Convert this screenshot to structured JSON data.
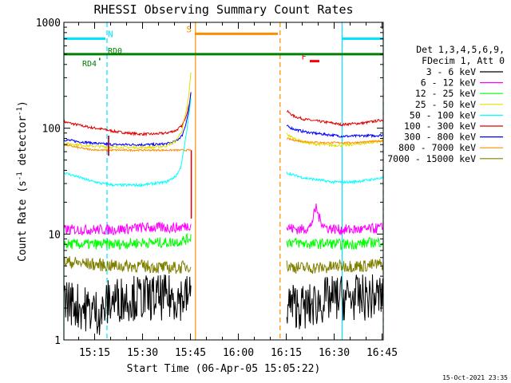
{
  "chart_data": {
    "type": "line",
    "title": "RHESSI Observing Summary Count Rates",
    "xlabel": "Start Time (06-Apr-05 15:05:22)",
    "ylabel": "Count Rate (s",
    "ylabel_sup": "-1",
    "ylabel_rest": " detector",
    "ylabel_close": ")",
    "y_scale": "log",
    "ylim": [
      1,
      1000
    ],
    "xlim_minutes": [
      0,
      100
    ],
    "y_ticks": [
      "1",
      "10",
      "100",
      "1000"
    ],
    "x_ticks": [
      {
        "label": "15:15",
        "min": 9.63
      },
      {
        "label": "15:30",
        "min": 24.63
      },
      {
        "label": "15:45",
        "min": 39.63
      },
      {
        "label": "16:00",
        "min": 54.63
      },
      {
        "label": "16:15",
        "min": 69.63
      },
      {
        "label": "16:30",
        "min": 84.63
      },
      {
        "label": "16:45",
        "min": 99.63
      }
    ],
    "footer_date": "15-Oct-2021 23:35",
    "legend": {
      "header1": "Det 1,3,4,5,6,9,",
      "header2": "FDecim 1, Att 0",
      "entries": [
        {
          "label": "3 - 6 keV",
          "color": "#000000"
        },
        {
          "label": "6 - 12 keV",
          "color": "#ff00ff"
        },
        {
          "label": "12 - 25 keV",
          "color": "#00ff00"
        },
        {
          "label": "25 - 50 keV",
          "color": "#e0e000"
        },
        {
          "label": "50 - 100 keV",
          "color": "#00ffff"
        },
        {
          "label": "100 - 300 keV",
          "color": "#e00000"
        },
        {
          "label": "300 - 800 keV",
          "color": "#0000ff"
        },
        {
          "label": "800 - 7000 keV",
          "color": "#ff8c00"
        },
        {
          "label": "7000 - 15000 keV",
          "color": "#808000"
        }
      ]
    },
    "flags": [
      {
        "label": "N",
        "color": "#00e5ff",
        "start_min": 0,
        "end_min": 13,
        "y": 700
      },
      {
        "label": "",
        "color": "#00e5ff",
        "start_min": 87,
        "end_min": 100,
        "y": 700
      },
      {
        "label": "S",
        "color": "#ff8c00",
        "start_min": 41,
        "end_min": 67,
        "y": 780
      },
      {
        "label": "F",
        "color": "#ff0000",
        "start_min": 77,
        "end_min": 80,
        "y": 430
      },
      {
        "label": "RD0",
        "color": "#008000",
        "start_min": 0,
        "end_min": 100,
        "y": 500
      },
      {
        "label": "RD4",
        "color": "#008000",
        "start_min": 11,
        "end_min": 11.4,
        "y": 450
      }
    ],
    "vlines": [
      {
        "min": 0,
        "color": "#00e5ff",
        "style": "solid"
      },
      {
        "min": 13.5,
        "color": "#00e5ff",
        "style": "dashed"
      },
      {
        "min": 41.2,
        "color": "#ff8c00",
        "style": "solid"
      },
      {
        "min": 67.7,
        "color": "#ff8c00",
        "style": "dashed"
      },
      {
        "min": 87.1,
        "color": "#00e5ff",
        "style": "solid"
      },
      {
        "min": 100,
        "color": "#00e5ff",
        "style": "dashed"
      }
    ],
    "data_gap_minutes": [
      39.9,
      69.8
    ],
    "series": [
      {
        "name": "100 - 300 keV",
        "color": "#e00000",
        "segments": [
          {
            "x": [
              0,
              4,
              8,
              12,
              16,
              20,
              24,
              28,
              32,
              35,
              37,
              38,
              39,
              39.5,
              39.9
            ],
            "y": [
              115,
              108,
              102,
              98,
              93,
              90,
              88,
              88,
              90,
              95,
              105,
              125,
              155,
              190,
              230
            ]
          },
          {
            "x": [
              69.8,
              72,
              75,
              78,
              81,
              84,
              87,
              90,
              94,
              97,
              100
            ],
            "y": [
              145,
              130,
              122,
              118,
              115,
              112,
              108,
              110,
              112,
              116,
              120
            ]
          }
        ]
      },
      {
        "name": "300 - 800 keV",
        "color": "#0000ff",
        "segments": [
          {
            "x": [
              0,
              4,
              8,
              12,
              16,
              20,
              24,
              28,
              32,
              35,
              37,
              38,
              39,
              39.5,
              39.9
            ],
            "y": [
              78,
              75,
              73,
              71,
              70,
              70,
              70,
              70,
              71,
              75,
              85,
              105,
              140,
              180,
              230
            ]
          },
          {
            "x": [
              69.8,
              72,
              75,
              78,
              81,
              84,
              87,
              90,
              94,
              97,
              100
            ],
            "y": [
              105,
              98,
              93,
              90,
              88,
              86,
              84,
              84,
              85,
              85,
              86
            ]
          }
        ]
      },
      {
        "name": "25 - 50 keV",
        "color": "#e0e000",
        "segments": [
          {
            "x": [
              0,
              4,
              8,
              12,
              16,
              20,
              24,
              28,
              32,
              35,
              37,
              38,
              39,
              39.5,
              39.9
            ],
            "y": [
              72,
              70,
              68,
              67,
              66,
              66,
              66,
              66,
              68,
              75,
              95,
              130,
              190,
              270,
              380
            ]
          },
          {
            "x": [
              69.8,
              72,
              75,
              78,
              81,
              84,
              87,
              90,
              94,
              97,
              100
            ],
            "y": [
              88,
              80,
              74,
              71,
              70,
              69,
              69,
              70,
              72,
              74,
              76
            ]
          }
        ]
      },
      {
        "name": "800 - 7000 keV",
        "color": "#ff8c00",
        "segments": [
          {
            "x": [
              0,
              4,
              8,
              12,
              16,
              20,
              24,
              28,
              32,
              35,
              37,
              38,
              39,
              39.5,
              39.9
            ],
            "y": [
              70,
              66,
              63,
              62,
              62,
              62,
              62,
              62,
              62,
              62,
              62,
              62,
              62,
              62,
              62
            ]
          },
          {
            "x": [
              69.8,
              72,
              75,
              78,
              81,
              84,
              87,
              90,
              94,
              97,
              100
            ],
            "y": [
              80,
              77,
              75,
              74,
              73,
              73,
              73,
              73,
              74,
              75,
              76
            ]
          }
        ]
      },
      {
        "name": "50 - 100 keV",
        "color": "#00ffff",
        "segments": [
          {
            "x": [
              0,
              4,
              8,
              12,
              16,
              20,
              24,
              28,
              32,
              35,
              36.5,
              37.5,
              38.5,
              39.2,
              39.9
            ],
            "y": [
              38,
              35,
              32,
              30,
              29,
              29,
              29,
              30,
              31,
              35,
              42,
              60,
              95,
              140,
              200
            ]
          },
          {
            "x": [
              69.8,
              72,
              75,
              78,
              81,
              84,
              87,
              90,
              94,
              97,
              100
            ],
            "y": [
              38,
              36,
              34,
              33,
              32,
              31,
              31,
              31,
              32,
              33,
              34
            ]
          }
        ]
      },
      {
        "name": "6 - 12 keV",
        "color": "#ff00ff",
        "segments": [
          {
            "x": [
              0,
              8,
              16,
              24,
              32,
              36,
              39,
              39.9
            ],
            "y": [
              11,
              11,
              11,
              11.5,
              11.5,
              11.5,
              12,
              12.5
            ]
          },
          {
            "x": [
              69.8,
              74,
              77,
              78,
              79,
              80,
              82,
              86,
              90,
              94,
              100
            ],
            "y": [
              11.5,
              11,
              11.5,
              14,
              18,
              14,
              11.5,
              11,
              11,
              11,
              11.5
            ]
          }
        ]
      },
      {
        "name": "12 - 25 keV",
        "color": "#00ff00",
        "segments": [
          {
            "x": [
              0,
              8,
              16,
              24,
              32,
              36,
              39,
              39.9
            ],
            "y": [
              8,
              8,
              8,
              8.3,
              8.3,
              8.5,
              9,
              9.5
            ]
          },
          {
            "x": [
              69.8,
              74,
              78,
              82,
              86,
              90,
              94,
              100
            ],
            "y": [
              8.5,
              8.2,
              8,
              8.2,
              8,
              8,
              8.2,
              8.5
            ]
          }
        ]
      },
      {
        "name": "7000 - 15000 keV",
        "color": "#808000",
        "segments": [
          {
            "x": [
              0,
              8,
              16,
              24,
              32,
              36,
              39,
              39.9
            ],
            "y": [
              5.5,
              5.2,
              5,
              5,
              4.8,
              4.8,
              5,
              5
            ]
          },
          {
            "x": [
              69.8,
              74,
              78,
              82,
              86,
              90,
              94,
              100
            ],
            "y": [
              5,
              4.8,
              4.8,
              4.8,
              5,
              5,
              5,
              5.2
            ]
          }
        ]
      },
      {
        "name": "3 - 6 keV",
        "color": "#000000",
        "segments": [
          {
            "x": [
              0,
              3,
              6,
              9,
              12,
              14,
              16,
              20,
              24,
              28,
              32,
              36,
              39.9
            ],
            "y": [
              2.5,
              2.2,
              2,
              1.9,
              1.8,
              2.3,
              2.4,
              2.5,
              2.5,
              2.5,
              2.5,
              2.5,
              2.6
            ]
          },
          {
            "x": [
              69.8,
              73,
              76,
              79,
              82,
              86,
              90,
              94,
              100
            ],
            "y": [
              2.2,
              2.1,
              2,
              2.2,
              2.4,
              2.5,
              2.5,
              2.5,
              2.6
            ]
          }
        ]
      }
    ],
    "step_edges": [
      {
        "color": "#e00000",
        "min": 39.9,
        "y_from": 14,
        "y_to": 62
      },
      {
        "color": "#0000ff",
        "min": 14,
        "y_from": 55,
        "y_to": 85
      },
      {
        "color": "#e00000",
        "min": 14,
        "y_from": 55,
        "y_to": 85
      }
    ]
  }
}
